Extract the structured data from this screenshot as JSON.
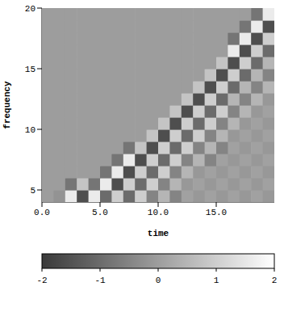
{
  "chart_data": {
    "type": "heatmap",
    "x_label": "time",
    "y_label": "frequency",
    "x": [
      0.5,
      1.5,
      2.5,
      3.5,
      4.5,
      5.5,
      6.5,
      7.5,
      8.5,
      9.5,
      10.5,
      11.5,
      12.5,
      13.5,
      14.5,
      15.5,
      16.5,
      17.5,
      18.5,
      19.5
    ],
    "y": [
      4.5,
      5.5,
      6.5,
      7.5,
      8.5,
      9.5,
      10.5,
      11.5,
      12.5,
      13.5,
      14.5,
      15.5,
      16.5,
      17.5,
      18.5,
      19.5
    ],
    "cells": [
      [
        0,
        -0.2,
        1.6,
        -1.6,
        1.6,
        -1.0,
        1.0,
        -1.0,
        1.0,
        -0.5,
        0.5,
        -0.5,
        0.1,
        -0.1,
        0.1,
        -0.1,
        0.1,
        -0.1,
        0.1,
        -0.1
      ],
      [
        0,
        0,
        -0.8,
        0.8,
        -0.8,
        1.6,
        -1.6,
        1.0,
        -1.0,
        1.0,
        -0.5,
        0.5,
        -0.1,
        0.1,
        -0.1,
        0.1,
        -0.1,
        0.1,
        -0.1,
        0.1
      ],
      [
        0,
        0,
        0,
        0,
        0,
        -0.8,
        1.6,
        -1.6,
        1.0,
        -1.0,
        1.0,
        -0.5,
        0.5,
        -0.1,
        0.1,
        -0.1,
        0.1,
        -0.1,
        0.1,
        -0.1
      ],
      [
        0,
        0,
        0,
        0,
        0,
        0,
        -0.8,
        1.6,
        -1.6,
        1.0,
        -1.0,
        1.0,
        -0.5,
        0.5,
        -0.5,
        0.1,
        -0.1,
        0.1,
        -0.1,
        0.1
      ],
      [
        0,
        0,
        0,
        0,
        0,
        0,
        0,
        -0.8,
        0.8,
        -1.6,
        1.0,
        -1.0,
        1.0,
        -0.5,
        0.5,
        -0.5,
        0.1,
        -0.1,
        0.1,
        -0.1
      ],
      [
        0,
        0,
        0,
        0,
        0,
        0,
        0,
        0,
        0,
        0.8,
        -1.6,
        1.0,
        -1.0,
        1.0,
        -0.5,
        0.5,
        -0.1,
        0.1,
        -0.1,
        0.1
      ],
      [
        0,
        0,
        0,
        0,
        0,
        0,
        0,
        0,
        0,
        0,
        0.8,
        -1.6,
        1.0,
        -1.0,
        1.0,
        -0.5,
        0.5,
        -0.1,
        0.1,
        -0.1
      ],
      [
        0,
        0,
        0,
        0,
        0,
        0,
        0,
        0,
        0,
        0,
        0,
        0.8,
        -1.6,
        1.0,
        -1.0,
        1.0,
        -0.5,
        0.5,
        -0.1,
        0.1
      ],
      [
        0,
        0,
        0,
        0,
        0,
        0,
        0,
        0,
        0,
        0,
        0,
        0,
        0.8,
        -1.6,
        1.0,
        -1.0,
        0.5,
        -0.5,
        0.5,
        -0.1
      ],
      [
        0,
        0,
        0,
        0,
        0,
        0,
        0,
        0,
        0,
        0,
        0,
        0,
        0,
        0.8,
        -1.6,
        1.0,
        -1.0,
        0.5,
        -0.5,
        0.5
      ],
      [
        0,
        0,
        0,
        0,
        0,
        0,
        0,
        0,
        0,
        0,
        0,
        0,
        0,
        0,
        0.8,
        -1.6,
        1.0,
        -1.0,
        0.5,
        -0.5
      ],
      [
        0,
        0,
        0,
        0,
        0,
        0,
        0,
        0,
        0,
        0,
        0,
        0,
        0,
        0,
        0,
        0.8,
        -1.6,
        1.0,
        -1.0,
        0.5
      ],
      [
        0,
        0,
        0,
        0,
        0,
        0,
        0,
        0,
        0,
        0,
        0,
        0,
        0,
        0,
        0,
        0,
        1.6,
        -1.6,
        1.0,
        -1.0
      ],
      [
        0,
        0,
        0,
        0,
        0,
        0,
        0,
        0,
        0,
        0,
        0,
        0,
        0,
        0,
        0,
        0,
        -0.8,
        1.6,
        -1.6,
        1.0
      ],
      [
        0,
        0,
        0,
        0,
        0,
        0,
        0,
        0,
        0,
        0,
        0,
        0,
        0,
        0,
        0,
        0,
        0,
        -0.8,
        1.6,
        -1.6
      ],
      [
        0,
        0,
        0,
        0,
        0,
        0,
        0,
        0,
        0,
        0,
        0,
        0,
        0,
        0,
        0,
        0,
        0,
        0,
        -0.8,
        1.6
      ]
    ],
    "xlim": [
      0,
      20
    ],
    "xticks": [
      {
        "value": 0,
        "label": "0.0"
      },
      {
        "value": 5,
        "label": "5.0"
      },
      {
        "value": 10,
        "label": "10.0"
      },
      {
        "value": 15,
        "label": "15.0"
      }
    ],
    "ylim": [
      4,
      20
    ],
    "yticks": [
      5,
      10,
      15,
      20
    ],
    "colorbar": {
      "lim": [
        -2,
        2
      ],
      "ticks": [
        -2,
        -1,
        0,
        1,
        2
      ]
    }
  }
}
